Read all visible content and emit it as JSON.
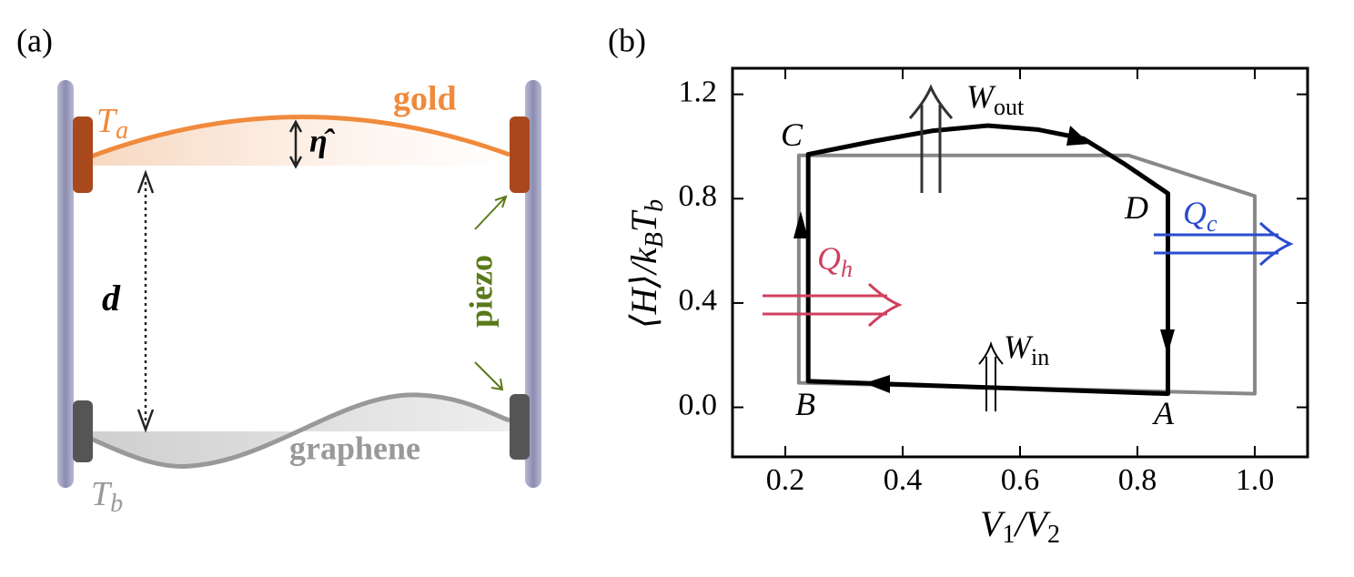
{
  "panel_a": {
    "label": "(a)",
    "hot_T": "T",
    "hot_T_sub": "a",
    "top_material": "gold",
    "displacement": "η̂",
    "distance": "d",
    "actuator": "piezo",
    "bottom_material": "graphene",
    "cold_T": "T",
    "cold_T_sub": "b"
  },
  "chart_data": {
    "type": "line",
    "panel_label": "(b)",
    "x_label": {
      "v1": "V",
      "v1_sub": "1",
      "v2": "/V",
      "v2_sub": "2"
    },
    "y_label": {
      "main": "⟨H⟩/k",
      "sub1": "B",
      "main2": "T",
      "sub2": "b"
    },
    "xlim": [
      0.11,
      1.09
    ],
    "xticks": [
      0.2,
      0.4,
      0.6,
      0.8,
      {
        "value": 1,
        "label": "1.0"
      }
    ],
    "ylim": [
      -0.19,
      1.3
    ],
    "yticks": [
      {
        "value": 0,
        "label": "0.0"
      },
      0.4,
      0.8,
      1.2
    ],
    "series": [
      {
        "color": "#888888",
        "x": [
          0.223,
          0.785,
          1.0,
          1.0,
          0.223
        ],
        "values": [
          0.966,
          0.966,
          0.81,
          0.052,
          0.094
        ]
      },
      {
        "color": "#000000",
        "x": [
          0.239,
          0.35,
          0.45,
          0.545,
          0.63,
          0.708,
          0.78,
          0.852,
          0.852,
          0.239
        ],
        "values": [
          0.97,
          1.02,
          1.06,
          1.08,
          1.065,
          1.03,
          0.93,
          0.82,
          0.052,
          0.1
        ]
      }
    ],
    "annotations": [
      {
        "text": "C"
      },
      {
        "text": "D"
      },
      {
        "text": "A"
      },
      {
        "text": "B"
      },
      {
        "text": "W",
        "sub": "out"
      },
      {
        "text": "W",
        "sub": "in"
      },
      {
        "text": "Q",
        "sub": "h"
      },
      {
        "text": "Q",
        "sub": "c"
      }
    ]
  }
}
